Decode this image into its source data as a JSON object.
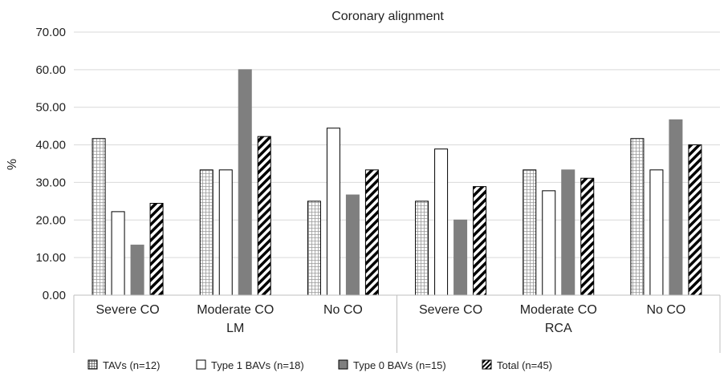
{
  "chart_data": {
    "type": "bar",
    "title": "Coronary alignment",
    "ylabel": "%",
    "ylim": [
      0,
      70
    ],
    "yticks": [
      "0.00",
      "10.00",
      "20.00",
      "30.00",
      "40.00",
      "50.00",
      "60.00",
      "70.00"
    ],
    "groups": [
      "LM",
      "RCA"
    ],
    "categories": [
      "Severe CO",
      "Moderate CO",
      "No CO",
      "Severe CO",
      "Moderate CO",
      "No CO"
    ],
    "grid": true,
    "legend_position": "bottom",
    "series": [
      {
        "name": "TAVs (n=12)",
        "values": [
          41.67,
          33.33,
          25.0,
          25.0,
          33.33,
          41.67
        ],
        "pattern": "grid",
        "color": "#ffffff"
      },
      {
        "name": "Type 1 BAVs (n=18)",
        "values": [
          22.22,
          33.33,
          44.44,
          38.89,
          27.78,
          33.33
        ],
        "pattern": "solid",
        "color": "#ffffff"
      },
      {
        "name": "Type 0 BAVs (n=15)",
        "values": [
          13.33,
          60.0,
          26.67,
          20.0,
          33.33,
          46.67
        ],
        "pattern": "solid",
        "color": "#7f7f7f"
      },
      {
        "name": "Total (n=45)",
        "values": [
          24.44,
          42.22,
          33.33,
          28.89,
          31.11,
          40.0
        ],
        "pattern": "diagonal",
        "color": "#ffffff"
      }
    ]
  }
}
